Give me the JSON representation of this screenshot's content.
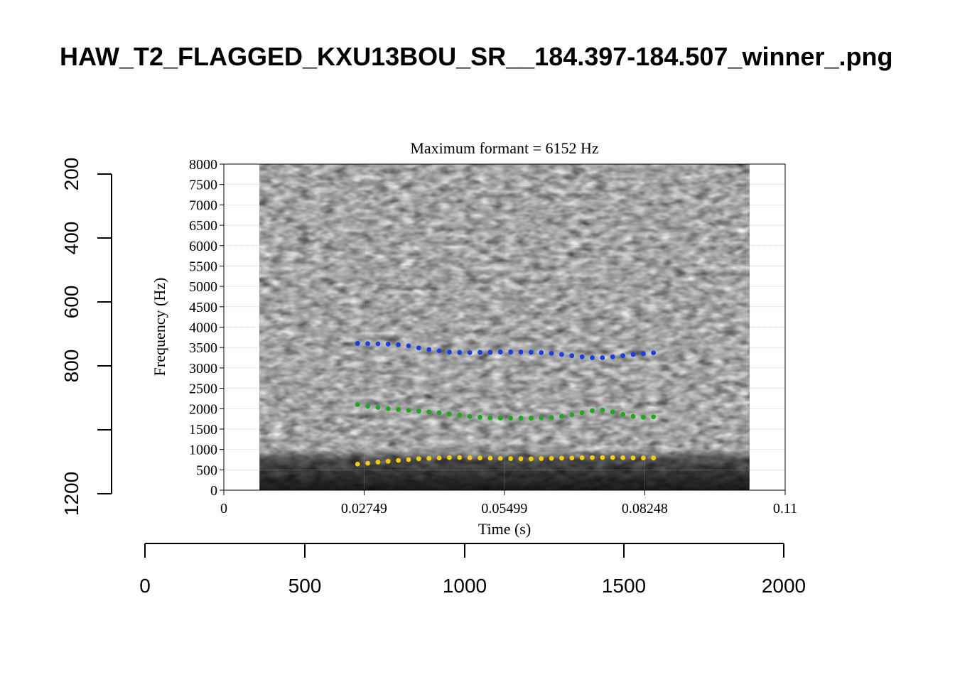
{
  "page_title": "HAW_T2_FLAGGED_KXU13BOU_SR__184.397-184.507_winner_.png",
  "outer_axes": {
    "x_ticks": [
      "0",
      "500",
      "1000",
      "1500",
      "2000"
    ],
    "y_ticks": [
      "200",
      "400",
      "600",
      "800",
      "1200"
    ]
  },
  "chart_data": {
    "type": "scatter",
    "title": "Maximum formant  =  6152 Hz",
    "xlabel": "Time (s)",
    "ylabel": "Frequency (Hz)",
    "xlim": [
      0,
      0.11
    ],
    "ylim": [
      0,
      8000
    ],
    "x_tick_values": [
      0,
      0.02749,
      0.05499,
      0.08248,
      0.11
    ],
    "x_tick_labels": [
      "0",
      "0.02749",
      "0.05499",
      "0.08248",
      "0.11"
    ],
    "y_tick_values": [
      0,
      500,
      1000,
      1500,
      2000,
      2500,
      3000,
      3500,
      4000,
      4500,
      5000,
      5500,
      6000,
      6500,
      7000,
      7500,
      8000
    ],
    "y_tick_labels": [
      "0",
      "500",
      "1000",
      "1500",
      "2000",
      "2500",
      "3000",
      "3500",
      "4000",
      "4500",
      "5000",
      "5500",
      "6000",
      "6500",
      "7000",
      "7500",
      "8000"
    ],
    "grid": true,
    "background": "spectrogram",
    "spectrogram_span": [
      0.007,
      0.103
    ],
    "series": [
      {
        "color": "#1a3fe0",
        "x": [
          0.0262,
          0.0282,
          0.0302,
          0.0322,
          0.0342,
          0.0362,
          0.0382,
          0.0402,
          0.0422,
          0.0442,
          0.0462,
          0.0482,
          0.0502,
          0.0522,
          0.0542,
          0.0562,
          0.0582,
          0.0602,
          0.0622,
          0.0642,
          0.0662,
          0.0682,
          0.0702,
          0.0722,
          0.0742,
          0.0762,
          0.0782,
          0.0802,
          0.0822,
          0.0842
        ],
        "y": [
          3600,
          3595,
          3590,
          3585,
          3570,
          3540,
          3490,
          3450,
          3420,
          3390,
          3380,
          3375,
          3380,
          3385,
          3390,
          3390,
          3390,
          3385,
          3375,
          3360,
          3330,
          3300,
          3270,
          3250,
          3250,
          3270,
          3300,
          3330,
          3350,
          3370
        ]
      },
      {
        "color": "#1fa81f",
        "x": [
          0.0262,
          0.0282,
          0.0302,
          0.0322,
          0.0342,
          0.0362,
          0.0382,
          0.0402,
          0.0422,
          0.0442,
          0.0462,
          0.0482,
          0.0502,
          0.0522,
          0.0542,
          0.0562,
          0.0582,
          0.0602,
          0.0622,
          0.0642,
          0.0662,
          0.0682,
          0.0702,
          0.0722,
          0.0742,
          0.0762,
          0.0782,
          0.0802,
          0.0822,
          0.0842
        ],
        "y": [
          2100,
          2060,
          2030,
          2000,
          1980,
          1960,
          1940,
          1920,
          1900,
          1870,
          1840,
          1810,
          1790,
          1775,
          1770,
          1770,
          1770,
          1770,
          1775,
          1785,
          1810,
          1850,
          1900,
          1950,
          1970,
          1920,
          1860,
          1810,
          1790,
          1800
        ]
      },
      {
        "color": "#f2cc0c",
        "x": [
          0.0262,
          0.0282,
          0.0302,
          0.0322,
          0.0342,
          0.0362,
          0.0382,
          0.0402,
          0.0422,
          0.0442,
          0.0462,
          0.0482,
          0.0502,
          0.0522,
          0.0542,
          0.0562,
          0.0582,
          0.0602,
          0.0622,
          0.0642,
          0.0662,
          0.0682,
          0.0702,
          0.0722,
          0.0742,
          0.0762,
          0.0782,
          0.0802,
          0.0822,
          0.0842
        ],
        "y": [
          640,
          660,
          690,
          710,
          730,
          750,
          770,
          780,
          790,
          800,
          800,
          795,
          790,
          785,
          780,
          775,
          770,
          770,
          775,
          780,
          785,
          790,
          795,
          800,
          800,
          800,
          795,
          790,
          790,
          790
        ]
      }
    ]
  }
}
